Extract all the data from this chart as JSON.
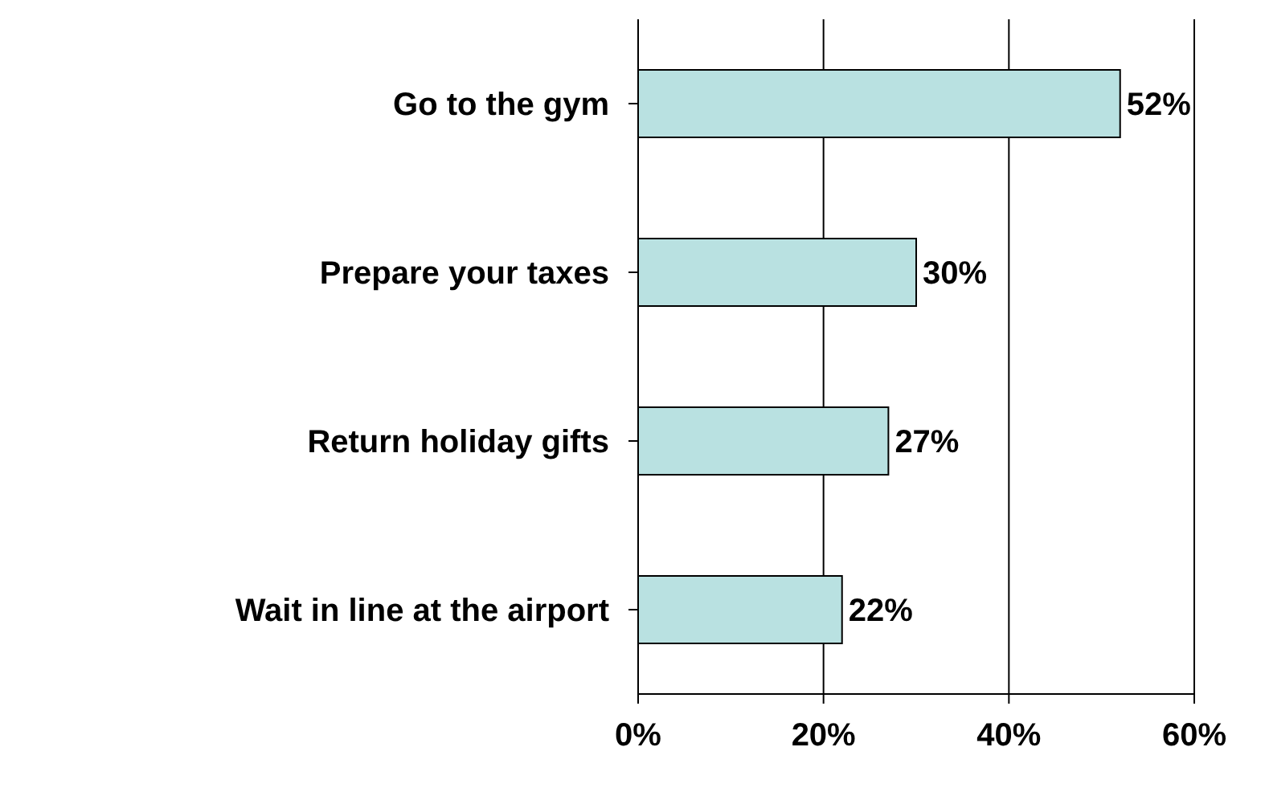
{
  "chart_data": {
    "type": "bar",
    "orientation": "horizontal",
    "categories": [
      "Go to the gym",
      "Prepare your taxes",
      "Return holiday gifts",
      "Wait in line at the airport"
    ],
    "values": [
      52,
      30,
      27,
      22
    ],
    "value_labels": [
      "52%",
      "30%",
      "27%",
      "22%"
    ],
    "color": "#b9e1e1",
    "xlim": [
      0,
      60
    ],
    "xticks": [
      {
        "value": 0,
        "label": "0%"
      },
      {
        "value": 20,
        "label": "20%"
      },
      {
        "value": 40,
        "label": "40%"
      },
      {
        "value": 60,
        "label": "60%"
      }
    ],
    "grid": "x",
    "legend": false
  }
}
